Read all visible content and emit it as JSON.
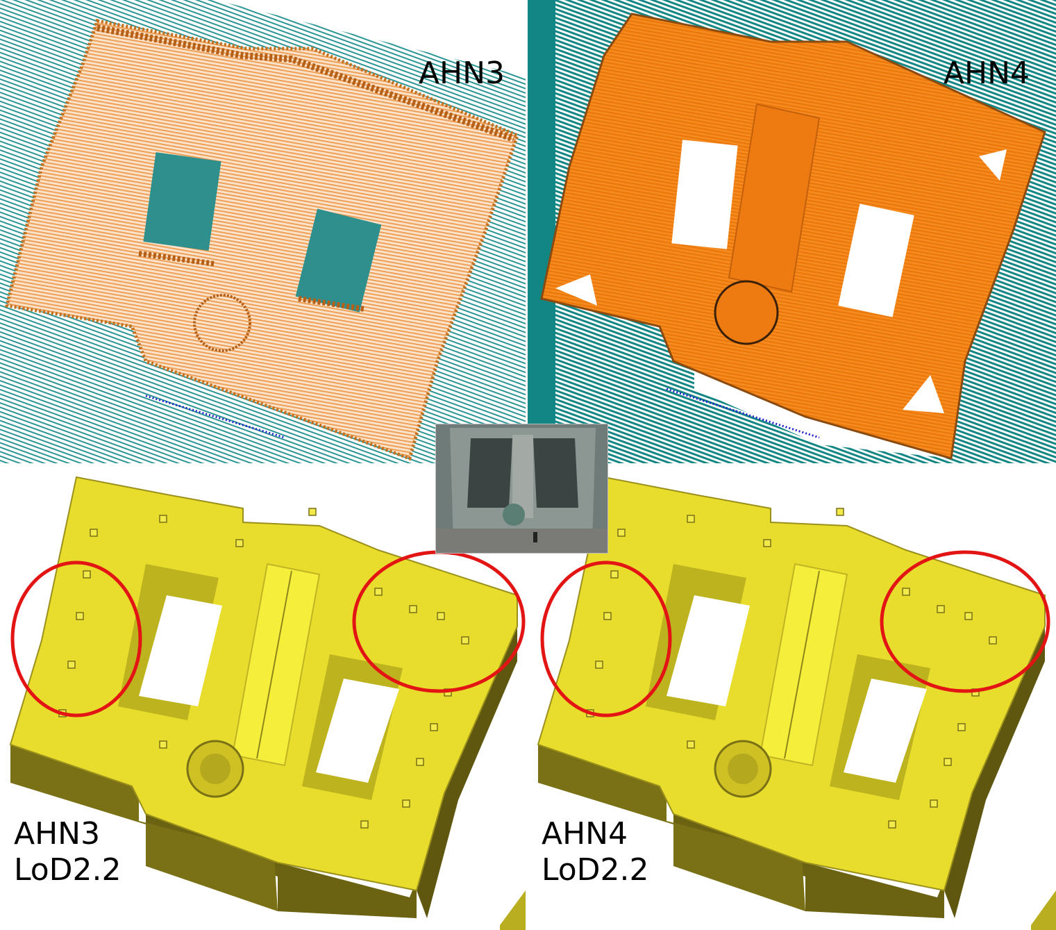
{
  "panels": {
    "ahn3_points": {
      "label": "AHN3"
    },
    "ahn4_points": {
      "label": "AHN4"
    },
    "ahn3_model": {
      "label_line1": "AHN3",
      "label_line2": "LoD2.2"
    },
    "ahn4_model": {
      "label_line1": "AHN4",
      "label_line2": "LoD2.2"
    }
  },
  "colors": {
    "ground_points": "#1e8c8a",
    "water_points": "#1a1ad0",
    "building_points_ahn3": "#f2a35b",
    "building_points_ahn4": "#f07d10",
    "model_roof": "#e8dc2c",
    "model_wall": "#6b6212",
    "highlight_circle": "#e31414"
  }
}
